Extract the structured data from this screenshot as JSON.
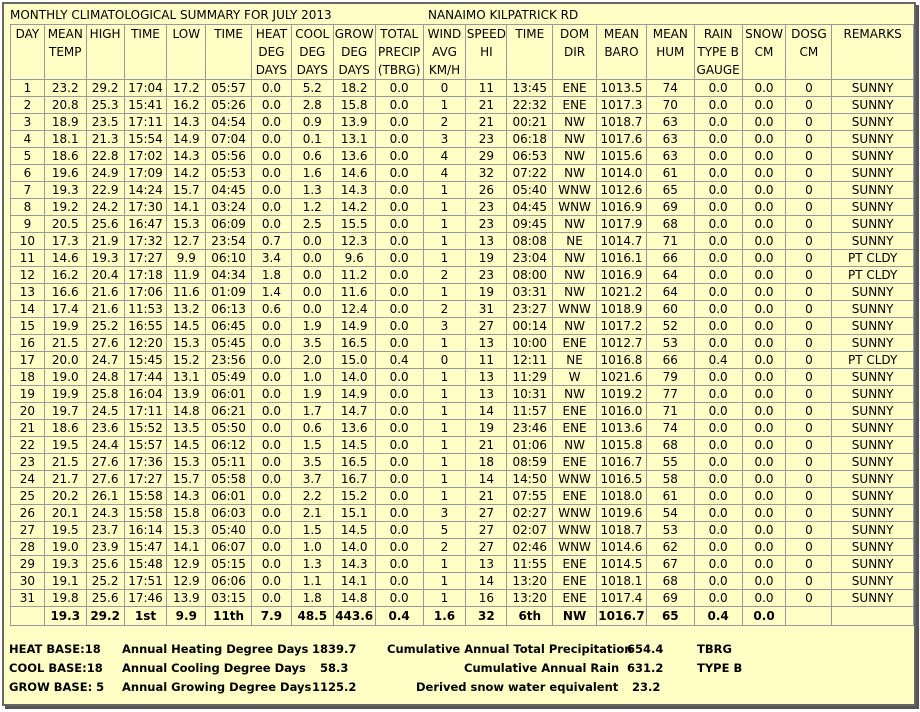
{
  "header": {
    "title": "MONTHLY CLIMATOLOGICAL SUMMARY FOR JULY 2013",
    "station": "NANAIMO KILPATRICK RD"
  },
  "table": {
    "columns": [
      [
        "DAY"
      ],
      [
        "MEAN",
        "TEMP"
      ],
      [
        "HIGH"
      ],
      [
        "TIME"
      ],
      [
        "LOW"
      ],
      [
        "TIME"
      ],
      [
        "HEAT",
        "DEG",
        "DAYS"
      ],
      [
        "COOL",
        "DEG",
        "DAYS"
      ],
      [
        "GROW",
        "DEG",
        "DAYS"
      ],
      [
        "TOTAL",
        "PRECIP",
        "(TBRG)"
      ],
      [
        "WIND",
        "AVG",
        "KM/H"
      ],
      [
        "SPEED",
        "HI"
      ],
      [
        "TIME"
      ],
      [
        "DOM",
        "DIR"
      ],
      [
        "MEAN",
        "BARO"
      ],
      [
        "MEAN",
        "HUM"
      ],
      [
        "RAIN",
        "TYPE B",
        "GAUGE"
      ],
      [
        "SNOW",
        "CM"
      ],
      [
        "DOSG",
        "CM"
      ],
      [
        "REMARKS"
      ]
    ],
    "rows": [
      [
        "1",
        "23.2",
        "29.2",
        "17:04",
        "17.2",
        "05:57",
        "0.0",
        "5.2",
        "18.2",
        "0.0",
        "0",
        "11",
        "13:45",
        "ENE",
        "1013.5",
        "74",
        "0.0",
        "0.0",
        "0",
        "SUNNY"
      ],
      [
        "2",
        "20.8",
        "25.3",
        "15:41",
        "16.2",
        "05:26",
        "0.0",
        "2.8",
        "15.8",
        "0.0",
        "1",
        "21",
        "22:32",
        "ENE",
        "1017.3",
        "70",
        "0.0",
        "0.0",
        "0",
        "SUNNY"
      ],
      [
        "3",
        "18.9",
        "23.5",
        "17:11",
        "14.3",
        "04:54",
        "0.0",
        "0.9",
        "13.9",
        "0.0",
        "2",
        "21",
        "00:21",
        "NW",
        "1018.7",
        "63",
        "0.0",
        "0.0",
        "0",
        "SUNNY"
      ],
      [
        "4",
        "18.1",
        "21.3",
        "15:54",
        "14.9",
        "07:04",
        "0.0",
        "0.1",
        "13.1",
        "0.0",
        "3",
        "23",
        "06:18",
        "NW",
        "1017.6",
        "63",
        "0.0",
        "0.0",
        "0",
        "SUNNY"
      ],
      [
        "5",
        "18.6",
        "22.8",
        "17:02",
        "14.3",
        "05:56",
        "0.0",
        "0.6",
        "13.6",
        "0.0",
        "4",
        "29",
        "06:53",
        "NW",
        "1015.6",
        "63",
        "0.0",
        "0.0",
        "0",
        "SUNNY"
      ],
      [
        "6",
        "19.6",
        "24.9",
        "17:09",
        "14.2",
        "05:53",
        "0.0",
        "1.6",
        "14.6",
        "0.0",
        "4",
        "32",
        "07:22",
        "NW",
        "1014.0",
        "61",
        "0.0",
        "0.0",
        "0",
        "SUNNY"
      ],
      [
        "7",
        "19.3",
        "22.9",
        "14:24",
        "15.7",
        "04:45",
        "0.0",
        "1.3",
        "14.3",
        "0.0",
        "1",
        "26",
        "05:40",
        "WNW",
        "1012.6",
        "65",
        "0.0",
        "0.0",
        "0",
        "SUNNY"
      ],
      [
        "8",
        "19.2",
        "24.2",
        "17:30",
        "14.1",
        "03:24",
        "0.0",
        "1.2",
        "14.2",
        "0.0",
        "1",
        "23",
        "04:45",
        "WNW",
        "1016.9",
        "69",
        "0.0",
        "0.0",
        "0",
        "SUNNY"
      ],
      [
        "9",
        "20.5",
        "25.6",
        "16:47",
        "15.3",
        "06:09",
        "0.0",
        "2.5",
        "15.5",
        "0.0",
        "1",
        "23",
        "09:45",
        "NW",
        "1017.9",
        "68",
        "0.0",
        "0.0",
        "0",
        "SUNNY"
      ],
      [
        "10",
        "17.3",
        "21.9",
        "17:32",
        "12.7",
        "23:54",
        "0.7",
        "0.0",
        "12.3",
        "0.0",
        "1",
        "13",
        "08:08",
        "NE",
        "1014.7",
        "71",
        "0.0",
        "0.0",
        "0",
        "SUNNY"
      ],
      [
        "11",
        "14.6",
        "19.3",
        "17:27",
        "9.9",
        "06:10",
        "3.4",
        "0.0",
        "9.6",
        "0.0",
        "1",
        "19",
        "23:04",
        "NW",
        "1016.1",
        "66",
        "0.0",
        "0.0",
        "0",
        "PT CLDY"
      ],
      [
        "12",
        "16.2",
        "20.4",
        "17:18",
        "11.9",
        "04:34",
        "1.8",
        "0.0",
        "11.2",
        "0.0",
        "2",
        "23",
        "08:00",
        "NW",
        "1016.9",
        "64",
        "0.0",
        "0.0",
        "0",
        "PT CLDY"
      ],
      [
        "13",
        "16.6",
        "21.6",
        "17:06",
        "11.6",
        "01:09",
        "1.4",
        "0.0",
        "11.6",
        "0.0",
        "1",
        "19",
        "03:31",
        "NW",
        "1021.2",
        "64",
        "0.0",
        "0.0",
        "0",
        "SUNNY"
      ],
      [
        "14",
        "17.4",
        "21.6",
        "11:53",
        "13.2",
        "06:13",
        "0.6",
        "0.0",
        "12.4",
        "0.0",
        "2",
        "31",
        "23:27",
        "WNW",
        "1018.9",
        "60",
        "0.0",
        "0.0",
        "0",
        "SUNNY"
      ],
      [
        "15",
        "19.9",
        "25.2",
        "16:55",
        "14.5",
        "06:45",
        "0.0",
        "1.9",
        "14.9",
        "0.0",
        "3",
        "27",
        "00:14",
        "NW",
        "1017.2",
        "52",
        "0.0",
        "0.0",
        "0",
        "SUNNY"
      ],
      [
        "16",
        "21.5",
        "27.6",
        "12:20",
        "15.3",
        "05:45",
        "0.0",
        "3.5",
        "16.5",
        "0.0",
        "1",
        "13",
        "10:00",
        "ENE",
        "1012.7",
        "53",
        "0.0",
        "0.0",
        "0",
        "SUNNY"
      ],
      [
        "17",
        "20.0",
        "24.7",
        "15:45",
        "15.2",
        "23:56",
        "0.0",
        "2.0",
        "15.0",
        "0.4",
        "0",
        "11",
        "12:11",
        "NE",
        "1016.8",
        "66",
        "0.4",
        "0.0",
        "0",
        "PT CLDY"
      ],
      [
        "18",
        "19.0",
        "24.8",
        "17:44",
        "13.1",
        "05:49",
        "0.0",
        "1.0",
        "14.0",
        "0.0",
        "1",
        "13",
        "11:29",
        "W",
        "1021.6",
        "79",
        "0.0",
        "0.0",
        "0",
        "SUNNY"
      ],
      [
        "19",
        "19.9",
        "25.8",
        "16:04",
        "13.9",
        "06:01",
        "0.0",
        "1.9",
        "14.9",
        "0.0",
        "1",
        "13",
        "10:31",
        "NW",
        "1019.2",
        "77",
        "0.0",
        "0.0",
        "0",
        "SUNNY"
      ],
      [
        "20",
        "19.7",
        "24.5",
        "17:11",
        "14.8",
        "06:21",
        "0.0",
        "1.7",
        "14.7",
        "0.0",
        "1",
        "14",
        "11:57",
        "ENE",
        "1016.0",
        "71",
        "0.0",
        "0.0",
        "0",
        "SUNNY"
      ],
      [
        "21",
        "18.6",
        "23.6",
        "15:52",
        "13.5",
        "05:50",
        "0.0",
        "0.6",
        "13.6",
        "0.0",
        "1",
        "19",
        "23:46",
        "ENE",
        "1013.6",
        "74",
        "0.0",
        "0.0",
        "0",
        "SUNNY"
      ],
      [
        "22",
        "19.5",
        "24.4",
        "15:57",
        "14.5",
        "06:12",
        "0.0",
        "1.5",
        "14.5",
        "0.0",
        "1",
        "21",
        "01:06",
        "NW",
        "1015.8",
        "68",
        "0.0",
        "0.0",
        "0",
        "SUNNY"
      ],
      [
        "23",
        "21.5",
        "27.6",
        "17:36",
        "15.3",
        "05:11",
        "0.0",
        "3.5",
        "16.5",
        "0.0",
        "1",
        "18",
        "08:59",
        "ENE",
        "1016.7",
        "55",
        "0.0",
        "0.0",
        "0",
        "SUNNY"
      ],
      [
        "24",
        "21.7",
        "27.6",
        "17:27",
        "15.7",
        "05:58",
        "0.0",
        "3.7",
        "16.7",
        "0.0",
        "1",
        "14",
        "14:50",
        "WNW",
        "1016.5",
        "58",
        "0.0",
        "0.0",
        "0",
        "SUNNY"
      ],
      [
        "25",
        "20.2",
        "26.1",
        "15:58",
        "14.3",
        "06:01",
        "0.0",
        "2.2",
        "15.2",
        "0.0",
        "1",
        "21",
        "07:55",
        "ENE",
        "1018.0",
        "61",
        "0.0",
        "0.0",
        "0",
        "SUNNY"
      ],
      [
        "26",
        "20.1",
        "24.3",
        "15:58",
        "15.8",
        "06:03",
        "0.0",
        "2.1",
        "15.1",
        "0.0",
        "3",
        "27",
        "02:27",
        "WNW",
        "1019.6",
        "54",
        "0.0",
        "0.0",
        "0",
        "SUNNY"
      ],
      [
        "27",
        "19.5",
        "23.7",
        "16:14",
        "15.3",
        "05:40",
        "0.0",
        "1.5",
        "14.5",
        "0.0",
        "5",
        "27",
        "02:07",
        "WNW",
        "1018.7",
        "53",
        "0.0",
        "0.0",
        "0",
        "SUNNY"
      ],
      [
        "28",
        "19.0",
        "23.9",
        "15:47",
        "14.1",
        "06:07",
        "0.0",
        "1.0",
        "14.0",
        "0.0",
        "2",
        "27",
        "02:46",
        "WNW",
        "1014.6",
        "62",
        "0.0",
        "0.0",
        "0",
        "SUNNY"
      ],
      [
        "29",
        "19.3",
        "25.6",
        "15:48",
        "12.9",
        "05:15",
        "0.0",
        "1.3",
        "14.3",
        "0.0",
        "1",
        "13",
        "11:55",
        "ENE",
        "1014.5",
        "67",
        "0.0",
        "0.0",
        "0",
        "SUNNY"
      ],
      [
        "30",
        "19.1",
        "25.2",
        "17:51",
        "12.9",
        "06:06",
        "0.0",
        "1.1",
        "14.1",
        "0.0",
        "1",
        "14",
        "13:20",
        "ENE",
        "1018.1",
        "68",
        "0.0",
        "0.0",
        "0",
        "SUNNY"
      ],
      [
        "31",
        "19.8",
        "25.6",
        "17:46",
        "13.9",
        "03:15",
        "0.0",
        "1.8",
        "14.8",
        "0.0",
        "1",
        "16",
        "13:20",
        "ENE",
        "1017.4",
        "69",
        "0.0",
        "0.0",
        "0",
        "SUNNY"
      ]
    ],
    "summary": [
      null,
      "19.3",
      "29.2",
      "1st",
      "9.9",
      "11th",
      "7.9",
      "48.5",
      "443.6",
      "0.4",
      "1.6",
      "32",
      "6th",
      "NW",
      "1016.7",
      "65",
      "0.4",
      "0.0",
      null,
      null
    ]
  },
  "footer": {
    "heat_base": "HEAT BASE:18",
    "cool_base": "COOL BASE:18",
    "grow_base": "GROW BASE: 5",
    "heating_label": "Annual Heating Degree Days",
    "heating_value": "1839.7",
    "cooling_label": "Annual Cooling Degree Days",
    "cooling_value": "58.3",
    "growing_label": "Annual Growing Degree Days",
    "growing_value": "1125.2",
    "precip_label": "Cumulative Annual Total Precipitation",
    "precip_value": "654.4",
    "precip_unit": "TBRG",
    "rain_label": "Cumulative Annual Rain",
    "rain_value": "631.2",
    "rain_unit": "TYPE B",
    "snow_label": "Derived snow water equivalent",
    "snow_value": "23.2"
  }
}
